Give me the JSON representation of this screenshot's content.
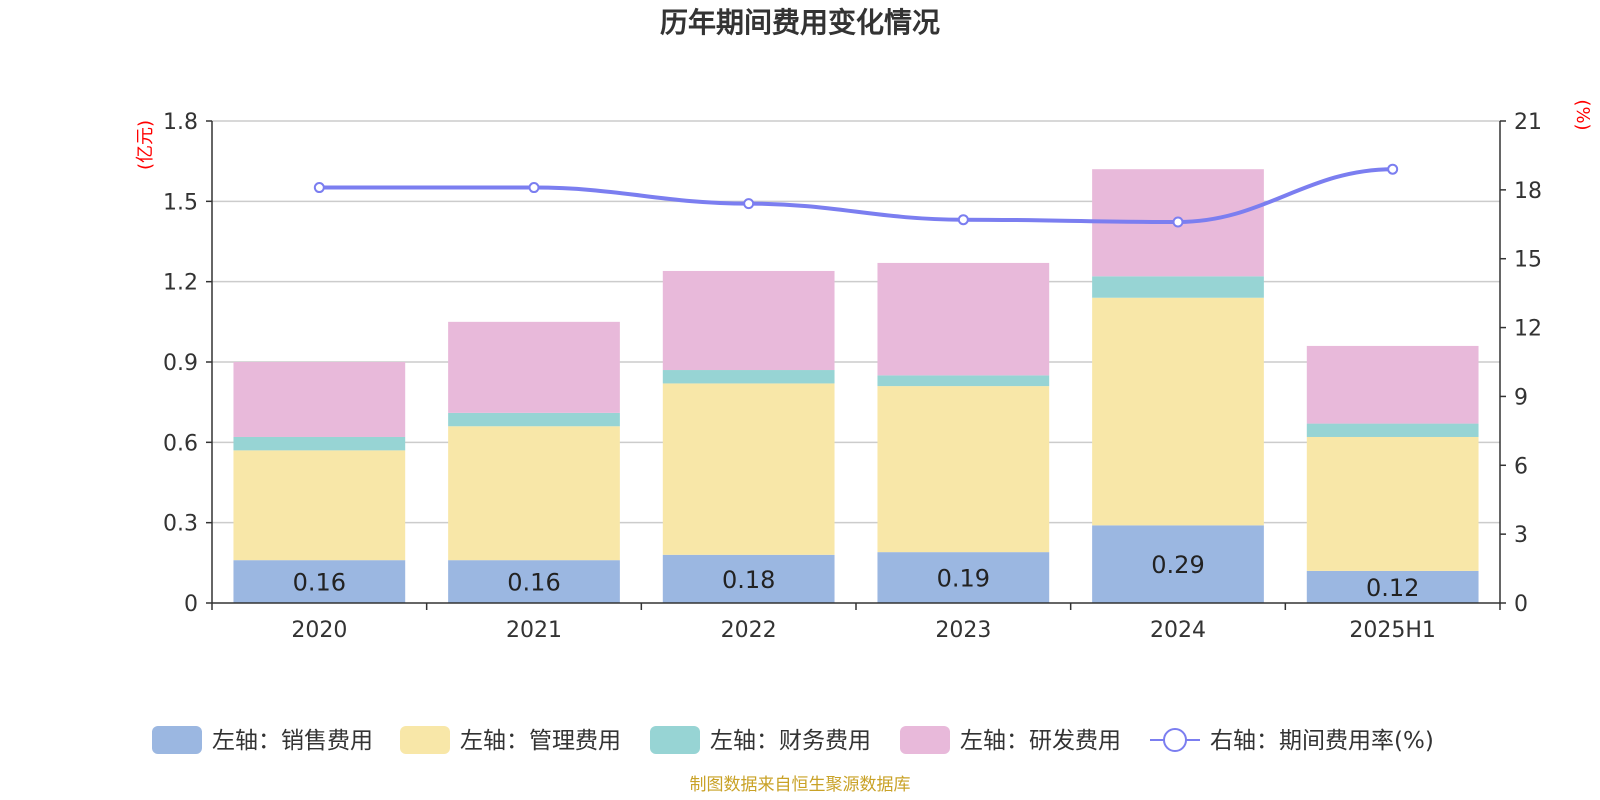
{
  "chart_data": {
    "type": "bar",
    "title": "历年期间费用变化情况",
    "categories": [
      "2020",
      "2021",
      "2022",
      "2023",
      "2024",
      "2025H1"
    ],
    "left_axis": {
      "unit": "(亿元)",
      "ylim": [
        0,
        1.8
      ],
      "ticks": [
        "0",
        "0.3",
        "0.6",
        "0.9",
        "1.2",
        "1.5",
        "1.8"
      ],
      "tick_values": [
        0,
        0.3,
        0.6,
        0.9,
        1.2,
        1.5,
        1.8
      ]
    },
    "right_axis": {
      "unit": "(%)",
      "ylim": [
        0,
        21
      ],
      "ticks": [
        "0",
        "3",
        "6",
        "9",
        "12",
        "15",
        "18",
        "21"
      ],
      "tick_values": [
        0,
        3,
        6,
        9,
        12,
        15,
        18,
        21
      ]
    },
    "series": [
      {
        "name": "左轴：销售费用",
        "kind": "stacked-bar",
        "color": "#9bb7e1",
        "values": [
          0.16,
          0.16,
          0.18,
          0.19,
          0.29,
          0.12
        ],
        "labels": [
          "0.16",
          "0.16",
          "0.18",
          "0.19",
          "0.29",
          "0.12"
        ]
      },
      {
        "name": "左轴：管理费用",
        "kind": "stacked-bar",
        "color": "#f8e7a8",
        "values": [
          0.41,
          0.5,
          0.64,
          0.62,
          0.85,
          0.5
        ]
      },
      {
        "name": "左轴：财务费用",
        "kind": "stacked-bar",
        "color": "#97d4d4",
        "values": [
          0.05,
          0.05,
          0.05,
          0.04,
          0.08,
          0.05
        ]
      },
      {
        "name": "左轴：研发费用",
        "kind": "stacked-bar",
        "color": "#e8b9da",
        "values": [
          0.28,
          0.34,
          0.37,
          0.42,
          0.4,
          0.29
        ]
      },
      {
        "name": "右轴：期间费用率(%)",
        "kind": "line",
        "axis": "right",
        "color": "#7b7ef0",
        "values": [
          18.1,
          18.1,
          17.4,
          16.7,
          16.6,
          18.9
        ]
      }
    ],
    "grid": true,
    "legend_position": "bottom"
  },
  "source": "制图数据来自恒生聚源数据库"
}
